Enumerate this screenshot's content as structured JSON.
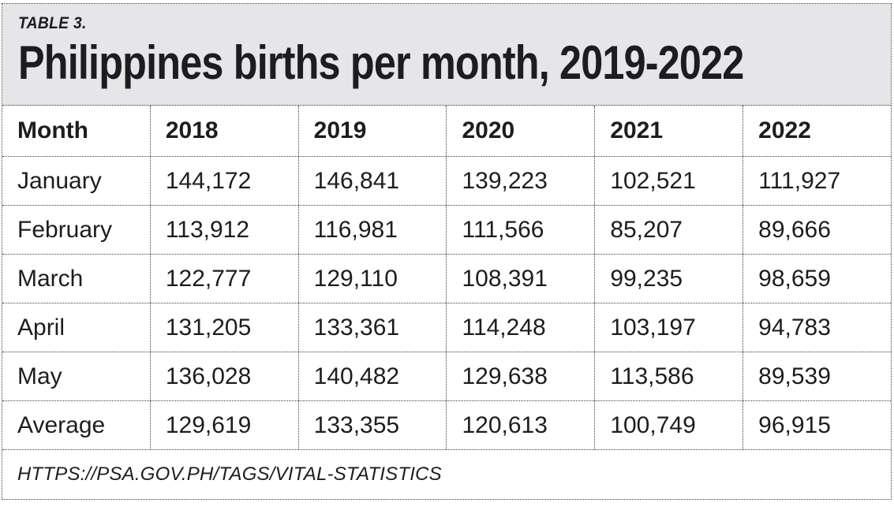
{
  "header": {
    "table_label": "TABLE 3.",
    "title": "Philippines births per month, 2019-2022"
  },
  "footer": {
    "source": "HTTPS://PSA.GOV.PH/TAGS/VITAL-STATISTICS"
  },
  "colors": {
    "band_bg": "#e6e6e8",
    "border": "#3c3c3c",
    "text": "#1d1d1f"
  },
  "chart_data": {
    "type": "table",
    "title": "Philippines births per month, 2019-2022",
    "title_label": "TABLE 3.",
    "columns": [
      "Month",
      "2018",
      "2019",
      "2020",
      "2021",
      "2022"
    ],
    "rows": [
      [
        "January",
        "144,172",
        "146,841",
        "139,223",
        "102,521",
        "111,927"
      ],
      [
        "February",
        "113,912",
        "116,981",
        "111,566",
        "85,207",
        "89,666"
      ],
      [
        "March",
        "122,777",
        "129,110",
        "108,391",
        "99,235",
        "98,659"
      ],
      [
        "April",
        "131,205",
        "133,361",
        "114,248",
        "103,197",
        "94,783"
      ],
      [
        "May",
        "136,028",
        "140,482",
        "129,638",
        "113,586",
        "89,539"
      ],
      [
        "Average",
        "129,619",
        "133,355",
        "120,613",
        "100,749",
        "96,915"
      ]
    ],
    "source": "HTTPS://PSA.GOV.PH/TAGS/VITAL-STATISTICS"
  }
}
